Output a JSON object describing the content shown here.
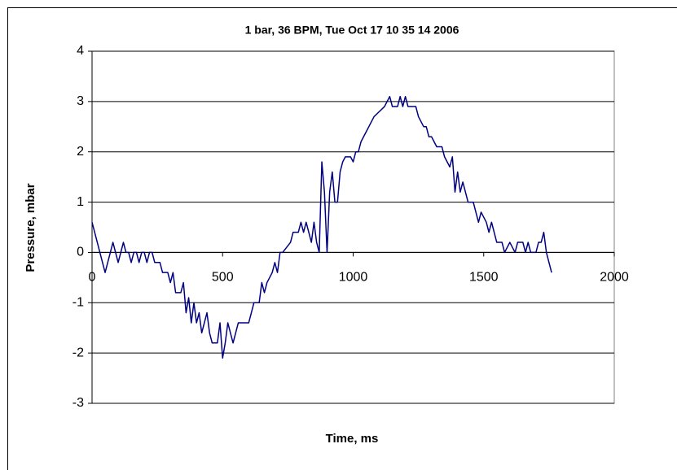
{
  "chart_data": {
    "type": "line",
    "title": "1 bar, 36 BPM, Tue Oct 17 10 35 14 2006",
    "x_label": "Time, ms",
    "y_label": "Pressure, mbar",
    "xlim": [
      0,
      2000
    ],
    "xticks": [
      0,
      500,
      1000,
      1500,
      2000
    ],
    "ylim": [
      -3,
      4
    ],
    "yticks": [
      -3,
      -2,
      -1,
      0,
      1,
      2,
      3,
      4
    ],
    "grid": true,
    "x": [
      0,
      10,
      20,
      30,
      40,
      50,
      60,
      70,
      80,
      90,
      100,
      110,
      120,
      130,
      140,
      150,
      160,
      170,
      180,
      190,
      200,
      210,
      220,
      230,
      240,
      260,
      270,
      290,
      300,
      310,
      320,
      340,
      350,
      360,
      370,
      380,
      390,
      400,
      410,
      420,
      430,
      440,
      450,
      460,
      480,
      490,
      500,
      510,
      520,
      530,
      540,
      550,
      560,
      600,
      610,
      620,
      640,
      650,
      660,
      670,
      690,
      700,
      710,
      720,
      730,
      760,
      770,
      790,
      800,
      810,
      820,
      830,
      840,
      850,
      860,
      870,
      880,
      890,
      900,
      910,
      920,
      930,
      940,
      950,
      960,
      970,
      990,
      1000,
      1010,
      1020,
      1030,
      1040,
      1050,
      1060,
      1080,
      1100,
      1120,
      1140,
      1150,
      1170,
      1180,
      1190,
      1200,
      1210,
      1240,
      1250,
      1270,
      1280,
      1290,
      1300,
      1320,
      1340,
      1350,
      1370,
      1380,
      1390,
      1400,
      1410,
      1420,
      1430,
      1440,
      1460,
      1470,
      1480,
      1490,
      1510,
      1520,
      1530,
      1540,
      1550,
      1570,
      1580,
      1600,
      1620,
      1630,
      1650,
      1660,
      1670,
      1680,
      1700,
      1710,
      1720,
      1730,
      1740,
      1760
    ],
    "series": [
      {
        "color": "#000080",
        "values": [
          0.6,
          0.4,
          0.2,
          0,
          -0.2,
          -0.4,
          -0.2,
          0,
          0.2,
          0,
          -0.2,
          0,
          0.2,
          0,
          0,
          -0.2,
          0,
          0,
          -0.2,
          0,
          0,
          -0.2,
          0,
          0,
          -0.2,
          -0.2,
          -0.4,
          -0.4,
          -0.6,
          -0.4,
          -0.8,
          -0.8,
          -0.6,
          -1.2,
          -0.9,
          -1.4,
          -1.0,
          -1.4,
          -1.2,
          -1.6,
          -1.4,
          -1.2,
          -1.6,
          -1.8,
          -1.8,
          -1.4,
          -2.1,
          -1.8,
          -1.4,
          -1.6,
          -1.8,
          -1.6,
          -1.4,
          -1.4,
          -1.2,
          -1.0,
          -1.0,
          -0.6,
          -0.8,
          -0.6,
          -0.4,
          -0.2,
          -0.4,
          0,
          0,
          0.2,
          0.4,
          0.4,
          0.6,
          0.4,
          0.6,
          0.4,
          0.2,
          0.6,
          0.2,
          0,
          1.8,
          1.2,
          0,
          1.2,
          1.6,
          1.0,
          1.0,
          1.6,
          1.8,
          1.9,
          1.9,
          1.8,
          2.0,
          2.0,
          2.2,
          2.3,
          2.4,
          2.5,
          2.7,
          2.8,
          2.9,
          3.1,
          2.9,
          2.9,
          3.1,
          2.9,
          3.1,
          2.9,
          2.9,
          2.7,
          2.5,
          2.5,
          2.3,
          2.3,
          2.1,
          2.1,
          1.9,
          1.7,
          1.9,
          1.2,
          1.6,
          1.2,
          1.4,
          1.2,
          1.0,
          1.0,
          0.8,
          0.6,
          0.8,
          0.6,
          0.4,
          0.6,
          0.4,
          0.2,
          0.2,
          0,
          0.2,
          0,
          0.2,
          0.2,
          0,
          0.2,
          0,
          0,
          0.2,
          0.2,
          0.4,
          0,
          -0.4
        ]
      }
    ]
  }
}
